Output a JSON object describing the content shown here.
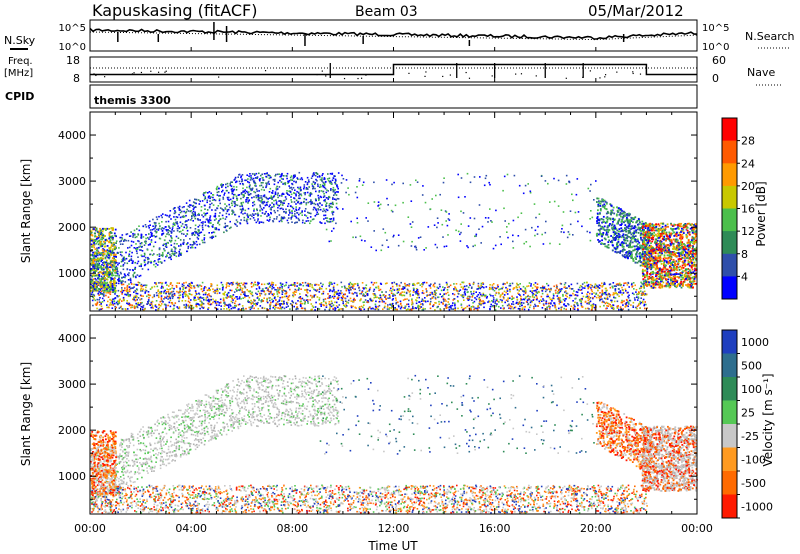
{
  "header": {
    "station": "Kapuskasing (fitACF)",
    "beam": "Beam 03",
    "date": "05/Mar/2012"
  },
  "noise_panel": {
    "left_label": "N.Sky",
    "right_label": "N.Search",
    "tick_top": "10^5",
    "tick_bottom": "10^0"
  },
  "freq_panel": {
    "left_label_line1": "Freq.",
    "left_label_line2": "[MHz]",
    "left_tick_top": "18",
    "left_tick_bottom": "8",
    "right_label": "Nave",
    "right_tick_top": "60",
    "right_tick_bottom": "0"
  },
  "cpid_panel": {
    "label": "CPID",
    "program": "themis 3300"
  },
  "power_panel": {
    "ylabel": "Slant Range [km]",
    "colorbar_label": "Power [dB]",
    "colorbar_ticks": [
      "28",
      "24",
      "20",
      "16",
      "12",
      "8",
      "4"
    ],
    "colorbar_colors": [
      "#ff0000",
      "#ff5a00",
      "#ff9a00",
      "#c8c800",
      "#4bbf4b",
      "#2e8b57",
      "#2f4faa",
      "#0000ff"
    ]
  },
  "velocity_panel": {
    "ylabel": "Slant Range [km]",
    "colorbar_label": "Velocity [m s⁻¹]",
    "colorbar_ticks": [
      "1000",
      "500",
      "100",
      "25",
      "-25",
      "-100",
      "-500",
      "-1000"
    ],
    "colorbar_colors": [
      "#1f3fbf",
      "#2e6e8e",
      "#2e8b57",
      "#55c855",
      "#c8c8c8",
      "#ff9a20",
      "#ff6a00",
      "#ff1a00"
    ]
  },
  "xaxis": {
    "label": "Time UT",
    "ticks": [
      "00:00",
      "04:00",
      "08:00",
      "12:00",
      "16:00",
      "20:00",
      "00:00"
    ]
  },
  "chart_data": {
    "type": "heatmap",
    "title": "Kapuskasing (fitACF)  Beam 03  05/Mar/2012",
    "xlabel": "Time UT",
    "ylabel": "Slant Range [km]",
    "x_ticks": [
      "00:00",
      "04:00",
      "08:00",
      "12:00",
      "16:00",
      "20:00",
      "00:00"
    ],
    "xlim_hours": [
      0,
      24
    ],
    "ylim_km": [
      180,
      4500
    ],
    "y_ticks": [
      1000,
      2000,
      3000,
      4000
    ],
    "frequency_segments_mhz": [
      {
        "start_hour": 0,
        "end_hour": 12,
        "freq": 11
      },
      {
        "start_hour": 12,
        "end_hour": 22,
        "freq": 15
      },
      {
        "start_hour": 22,
        "end_hour": 24,
        "freq": 11
      }
    ],
    "panels": [
      {
        "quantity": "Power",
        "units": "dB",
        "colorbar_ticks": [
          28,
          24,
          20,
          16,
          12,
          8,
          4
        ],
        "features": [
          {
            "desc": "rising scatter band",
            "x_hours": [
              0.0,
              6.0,
              9.5
            ],
            "y_km": [
              1300,
              3000,
              3000
            ]
          },
          {
            "desc": "near-range ground scatter",
            "x_hours": [
              0,
              22
            ],
            "y_km": [
              250,
              800
            ]
          },
          {
            "desc": "evening scatter",
            "x_hours": [
              20.0,
              22.0
            ],
            "y_km": [
              1800,
              2800
            ]
          },
          {
            "desc": "strong late echoes",
            "x_hours": [
              22.0,
              24.0
            ],
            "y_km": [
              800,
              2000
            ]
          }
        ]
      },
      {
        "quantity": "Velocity",
        "units": "m s-1",
        "colorbar_ticks": [
          1000,
          500,
          100,
          25,
          -25,
          -100,
          -500,
          -1000
        ],
        "features": [
          {
            "desc": "low velocity band",
            "x_hours": [
              0.0,
              6.0,
              9.5
            ],
            "y_km": [
              1300,
              3000,
              3000
            ]
          },
          {
            "desc": "near-range scatter",
            "x_hours": [
              0,
              22
            ],
            "y_km": [
              250,
              800
            ]
          },
          {
            "desc": "negative velocity arc",
            "x_hours": [
              20.0,
              22.5
            ],
            "y_km": [
              800,
              2600
            ]
          }
        ]
      }
    ]
  }
}
